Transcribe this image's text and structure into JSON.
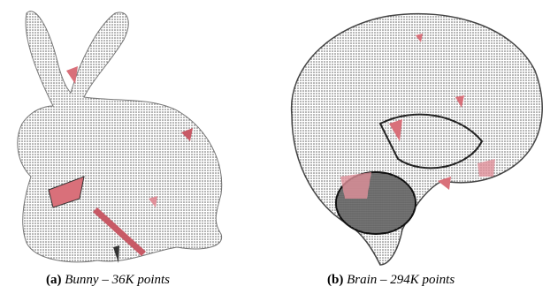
{
  "subfigures": [
    {
      "label": "(a)",
      "caption": "Bunny – 36K points"
    },
    {
      "label": "(b)",
      "caption": "Brain – 294K points"
    }
  ]
}
